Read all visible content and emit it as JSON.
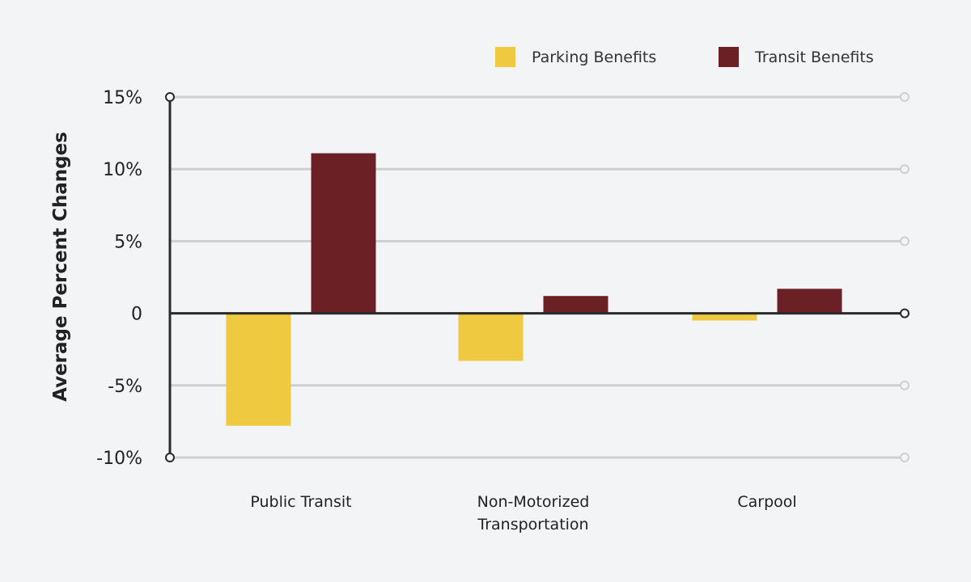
{
  "chart_data": {
    "type": "bar",
    "title": "",
    "xlabel": "",
    "ylabel": "Average Percent Changes",
    "ylim": [
      -10,
      15
    ],
    "yticks": [
      15,
      10,
      5,
      0,
      -5,
      -10
    ],
    "ytick_labels": [
      "15%",
      "10%",
      "5%",
      "0",
      "-5%",
      "-10%"
    ],
    "grid": true,
    "legend_placement": "top-right",
    "categories": [
      [
        "Public Transit"
      ],
      [
        "Non-Motorized",
        "Transportation"
      ],
      [
        "Carpool"
      ]
    ],
    "series": [
      {
        "name": "Parking Benefits",
        "color": "#efc940",
        "values": [
          -7.8,
          -3.3,
          -0.5
        ]
      },
      {
        "name": "Transit Benefits",
        "color": "#6b2025",
        "values": [
          11.1,
          1.2,
          1.7
        ]
      }
    ]
  }
}
